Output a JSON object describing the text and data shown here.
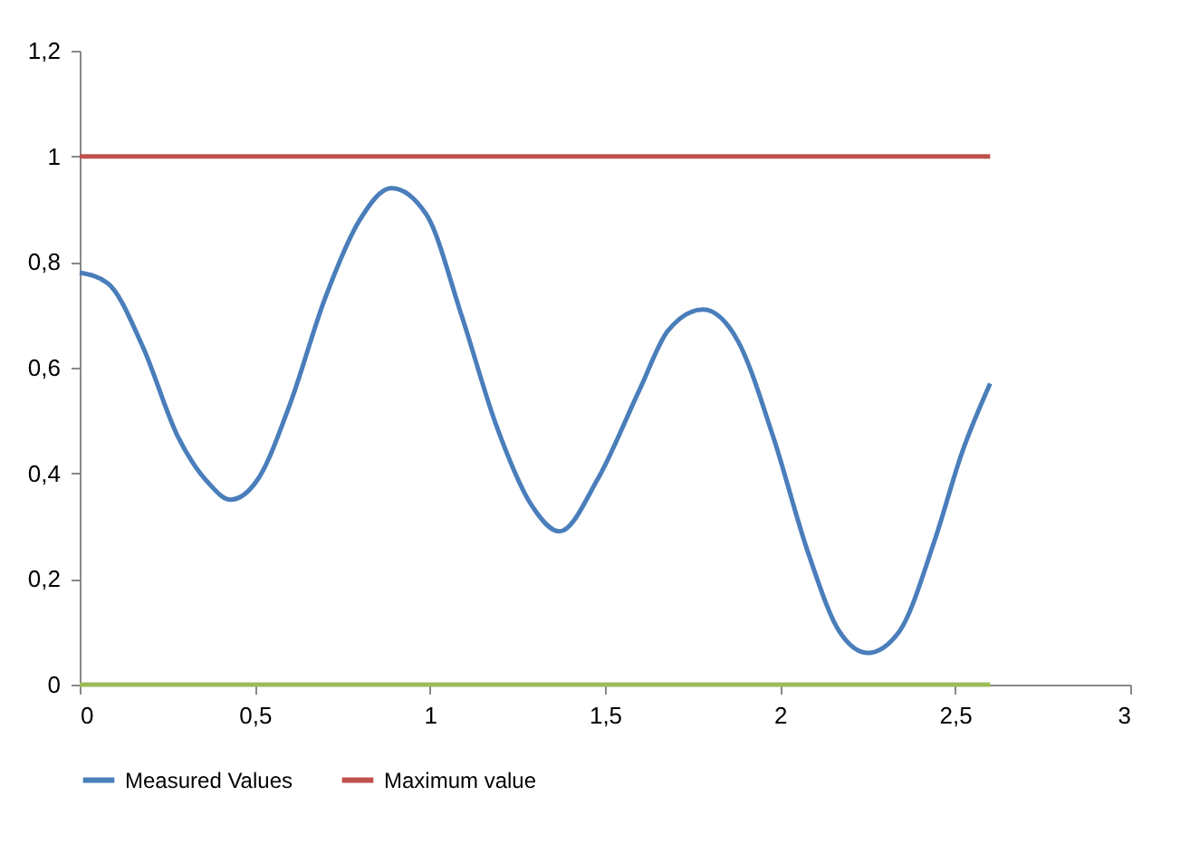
{
  "chart_data": {
    "type": "line",
    "xlim": [
      0,
      3
    ],
    "xticks": [
      0,
      {
        "value": 0.5,
        "label": "0,5"
      },
      1,
      {
        "value": 1.5,
        "label": "1,5"
      },
      2,
      {
        "value": 2.5,
        "label": "2,5"
      },
      3
    ],
    "ylim": [
      0,
      1.2
    ],
    "yticks": [
      0,
      {
        "value": 0.2,
        "label": "0,2"
      },
      {
        "value": 0.4,
        "label": "0,4"
      },
      {
        "value": 0.6,
        "label": "0,6"
      },
      {
        "value": 0.8,
        "label": "0,8"
      },
      1,
      {
        "value": 1.2,
        "label": "1,2"
      }
    ],
    "grid": false,
    "legend": "bottom",
    "marker": "none",
    "line_style": "solid",
    "series": [
      {
        "name": "Measured Values",
        "color": "#4a7ebb",
        "x": [
          0,
          0.08,
          0.18,
          0.28,
          0.37,
          0.43,
          0.51,
          0.6,
          0.7,
          0.8,
          0.89,
          0.99,
          1.09,
          1.19,
          1.29,
          1.37,
          1.48,
          1.6,
          1.68,
          1.78,
          1.88,
          1.98,
          2.08,
          2.17,
          2.25,
          2.34,
          2.44,
          2.52,
          2.6
        ],
        "values": [
          0.78,
          0.76,
          0.64,
          0.47,
          0.38,
          0.35,
          0.39,
          0.53,
          0.73,
          0.88,
          0.94,
          0.89,
          0.7,
          0.49,
          0.34,
          0.29,
          0.39,
          0.56,
          0.67,
          0.71,
          0.65,
          0.47,
          0.25,
          0.1,
          0.06,
          0.1,
          0.27,
          0.44,
          0.57
        ]
      },
      {
        "name": "Maximum value",
        "color": "#c0504d",
        "x": [
          0,
          2.6
        ],
        "values": [
          1,
          1
        ]
      },
      {
        "color": "#9bbb59",
        "x": [
          0,
          2.6
        ],
        "values": [
          0,
          0
        ]
      }
    ]
  }
}
